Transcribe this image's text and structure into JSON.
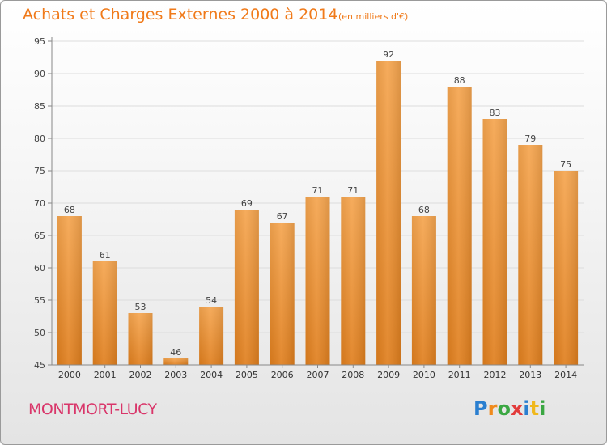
{
  "header": {
    "title": "Achats et Charges Externes 2000 à 2014",
    "unit": "(en milliers d'€)"
  },
  "footer": {
    "commune": "MONTMORT-LUCY",
    "logo": "Proxiti"
  },
  "colors": {
    "bar_top": "#f5a54f",
    "bar_bottom": "#e07f1e",
    "title": "#f07a1a",
    "commune": "#d9366a"
  },
  "chart_data": {
    "type": "bar",
    "title": "Achats et Charges Externes 2000 à 2014",
    "subtitle": "(en milliers d'€)",
    "categories": [
      "2000",
      "2001",
      "2002",
      "2003",
      "2004",
      "2005",
      "2006",
      "2007",
      "2008",
      "2009",
      "2010",
      "2011",
      "2012",
      "2013",
      "2014"
    ],
    "values": [
      68,
      61,
      53,
      46,
      54,
      69,
      67,
      71,
      71,
      92,
      68,
      88,
      83,
      79,
      75
    ],
    "ylim": [
      45,
      95
    ],
    "yticks": [
      45,
      50,
      55,
      60,
      65,
      70,
      75,
      80,
      85,
      90,
      95
    ],
    "grid": true,
    "xlabel": "",
    "ylabel": ""
  }
}
